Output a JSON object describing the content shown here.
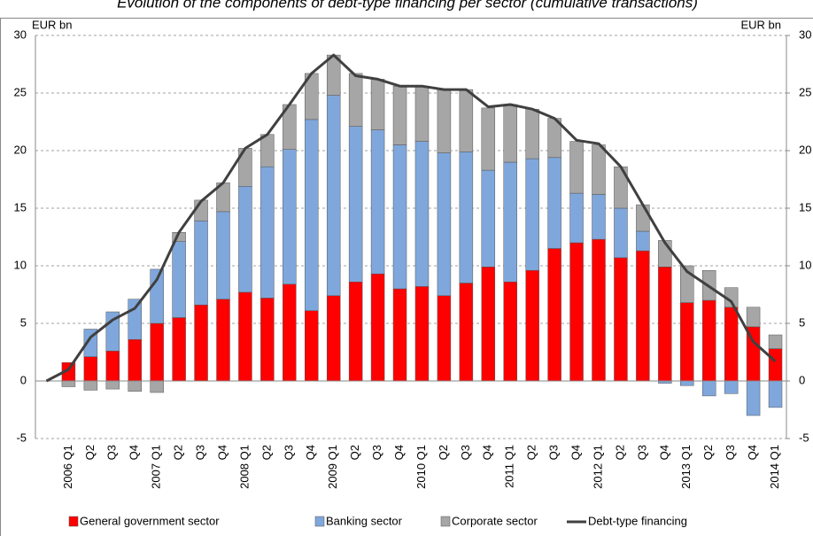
{
  "chart_data": {
    "type": "bar",
    "title": "Evolution of the components of debt-type financing per sector (cumulative transactions)",
    "y_label": "EUR bn",
    "y2_label": "EUR bn",
    "categories": [
      null,
      "2006 Q1",
      "Q2",
      "Q3",
      "Q4",
      "2007 Q1",
      "Q2",
      "Q3",
      "Q4",
      "2008 Q1",
      "Q2",
      "Q3",
      "Q4",
      "2009 Q1",
      "Q2",
      "Q3",
      "Q4",
      "2010 Q1",
      "Q2",
      "Q3",
      "Q4",
      "2011 Q1",
      "Q2",
      "Q3",
      "Q4",
      "2012 Q1",
      "Q2",
      "Q3",
      "Q4",
      "2013 Q1",
      "Q2",
      "Q3",
      "Q4",
      "2014 Q1"
    ],
    "series": [
      {
        "name": "General government sector",
        "color": "#ff0000",
        "stacked": true,
        "values": [
          null,
          1.6,
          2.1,
          2.6,
          3.6,
          5.0,
          5.5,
          6.6,
          7.1,
          7.7,
          7.2,
          8.4,
          6.1,
          7.4,
          8.6,
          9.3,
          8.0,
          8.2,
          7.4,
          8.5,
          9.9,
          8.6,
          9.6,
          11.5,
          12.0,
          12.3,
          10.7,
          11.3,
          9.9,
          6.8,
          7.0,
          6.4,
          4.7,
          2.8
        ]
      },
      {
        "name": "Banking sector",
        "color": "#7fa7dc",
        "stacked": true,
        "values": [
          null,
          0,
          2.4,
          3.4,
          3.5,
          4.7,
          6.6,
          7.3,
          7.6,
          9.2,
          11.4,
          11.7,
          16.6,
          17.4,
          13.5,
          12.5,
          12.5,
          12.6,
          12.4,
          11.4,
          8.4,
          10.4,
          9.7,
          7.9,
          4.3,
          3.9,
          4.3,
          1.7,
          -0.2,
          -0.4,
          -1.3,
          -1.1,
          -3.0,
          -2.3
        ]
      },
      {
        "name": "Corporate sector",
        "color": "#a6a6a6",
        "stacked": true,
        "values": [
          null,
          -0.5,
          -0.8,
          -0.7,
          -0.9,
          -1.0,
          0.8,
          1.8,
          2.5,
          3.3,
          2.8,
          3.9,
          4.0,
          3.5,
          4.6,
          4.4,
          5.1,
          4.8,
          5.5,
          5.4,
          5.4,
          5.0,
          4.3,
          3.4,
          4.5,
          4.3,
          3.6,
          2.3,
          2.3,
          3.2,
          2.6,
          1.7,
          1.7,
          1.2
        ]
      },
      {
        "name": "Debt-type financing",
        "color": "#404040",
        "type": "line",
        "values": [
          0,
          1.0,
          3.8,
          5.3,
          6.3,
          8.8,
          12.9,
          15.6,
          17.2,
          20.2,
          21.4,
          24.0,
          26.7,
          28.3,
          26.5,
          26.2,
          25.6,
          25.6,
          25.3,
          25.3,
          23.8,
          24.0,
          23.6,
          22.8,
          20.9,
          20.6,
          18.6,
          15.3,
          12.0,
          9.5,
          8.2,
          6.9,
          3.4,
          1.7
        ]
      }
    ],
    "ylim": [
      -5,
      30
    ],
    "yticks": [
      -5,
      0,
      5,
      10,
      15,
      20,
      25,
      30
    ],
    "y2lim": [
      -5,
      30
    ],
    "y2ticks": [
      -5,
      0,
      5,
      10,
      15,
      20,
      25,
      30
    ],
    "grid": true,
    "legend": "bottom"
  }
}
